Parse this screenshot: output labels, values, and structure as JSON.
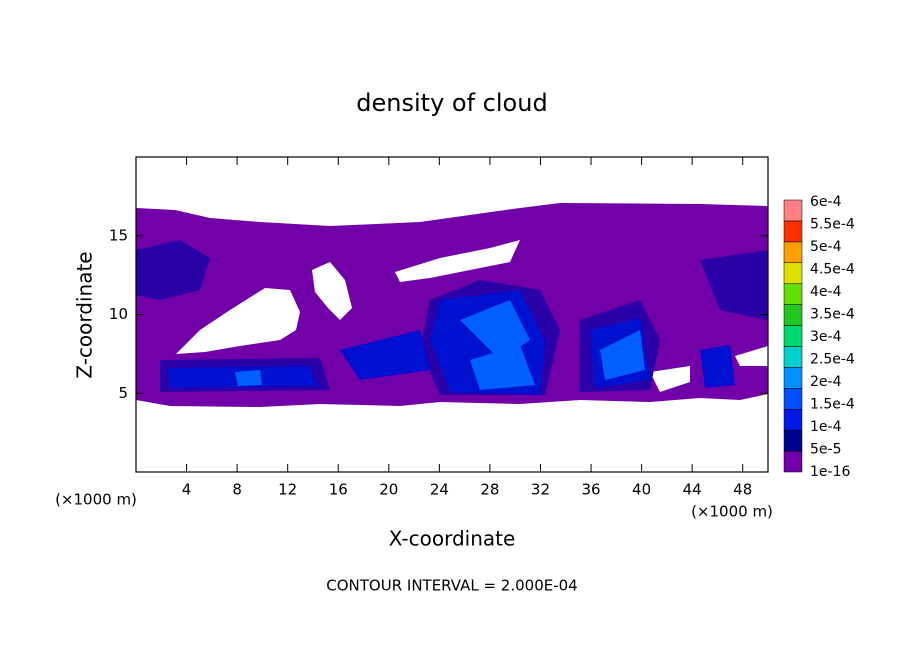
{
  "chart_data": {
    "type": "contour",
    "title": "density of cloud",
    "x_label": "X-coordinate",
    "y_label": "Z-coordinate",
    "x_unit": "(×1000 m)",
    "annotation": "CONTOUR INTERVAL = 2.000E-04",
    "xlim": [
      0,
      50
    ],
    "ylim": [
      0,
      20
    ],
    "xticks": [
      4,
      8,
      12,
      16,
      20,
      24,
      28,
      32,
      36,
      40,
      44,
      48
    ],
    "yticks": [
      5,
      10,
      15
    ],
    "colorbar": {
      "levels": [
        {
          "value": 1e-16,
          "label": "1e-16"
        },
        {
          "value": 5e-05,
          "label": "5e-5"
        },
        {
          "value": 0.0001,
          "label": "1e-4"
        },
        {
          "value": 0.00015,
          "label": "1.5e-4"
        },
        {
          "value": 0.0002,
          "label": "2e-4"
        },
        {
          "value": 0.00025,
          "label": "2.5e-4"
        },
        {
          "value": 0.0003,
          "label": "3e-4"
        },
        {
          "value": 0.00035,
          "label": "3.5e-4"
        },
        {
          "value": 0.0004,
          "label": "4e-4"
        },
        {
          "value": 0.00045,
          "label": "4.5e-4"
        },
        {
          "value": 0.0005,
          "label": "5e-4"
        },
        {
          "value": 0.00055,
          "label": "5.5e-4"
        },
        {
          "value": 0.0006,
          "label": "6e-4"
        }
      ],
      "colors": [
        "#7200a8",
        "#00008c",
        "#0018e8",
        "#0050ff",
        "#0090ff",
        "#00d0d0",
        "#00d870",
        "#20c820",
        "#60e000",
        "#e0e000",
        "#ffa000",
        "#ff3000",
        "#ff8080"
      ]
    }
  }
}
